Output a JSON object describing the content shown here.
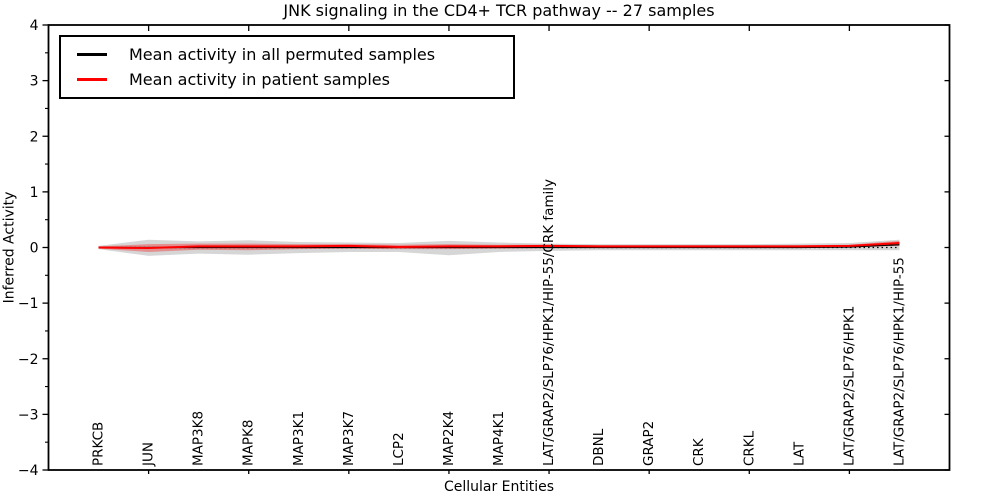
{
  "chart_data": {
    "type": "line",
    "title": "JNK signaling in the CD4+ TCR pathway -- 27 samples",
    "xlabel": "Cellular Entities",
    "ylabel": "Inferred Activity",
    "ylim": [
      -4,
      4
    ],
    "yticks": [
      4,
      3,
      2,
      1,
      0,
      -1,
      -2,
      -3,
      -4
    ],
    "ytick_labels": [
      "4",
      "3",
      "2",
      "1",
      "0",
      "−1",
      "−2",
      "−3",
      "−4"
    ],
    "grid": false,
    "legend": {
      "position": "upper left",
      "entries": [
        {
          "label": "Mean activity in all permuted samples",
          "color": "#000000"
        },
        {
          "label": "Mean activity in patient samples",
          "color": "#ff0000"
        }
      ]
    },
    "categories": [
      "PRKCB",
      "JUN",
      "MAP3K8",
      "MAPK8",
      "MAP3K1",
      "MAP3K7",
      "LCP2",
      "MAP2K4",
      "MAP4K1",
      "LAT/GRAP2/SLP76/HPK1/HIP-55/CRK family",
      "DBNL",
      "GRAP2",
      "CRK",
      "CRKL",
      "LAT",
      "LAT/GRAP2/SLP76/HPK1",
      "LAT/GRAP2/SLP76/HPK1/HIP-55"
    ],
    "series": [
      {
        "name": "Mean activity in all permuted samples",
        "color": "#000000",
        "style": "solid",
        "values": [
          0.0,
          0.0,
          0.0,
          0.0,
          0.0,
          0.0,
          0.0,
          0.0,
          0.0,
          0.0,
          0.0,
          0.0,
          0.0,
          0.0,
          0.0,
          0.01,
          0.05
        ],
        "band_upper": [
          0.03,
          0.14,
          0.11,
          0.13,
          0.1,
          0.09,
          0.08,
          0.12,
          0.09,
          0.07,
          0.06,
          0.06,
          0.06,
          0.06,
          0.07,
          0.08,
          0.14
        ],
        "band_lower": [
          -0.03,
          -0.15,
          -0.11,
          -0.13,
          -0.1,
          -0.08,
          -0.08,
          -0.14,
          -0.08,
          -0.06,
          -0.05,
          -0.05,
          -0.05,
          -0.05,
          -0.05,
          -0.05,
          -0.05
        ],
        "band_color": "rgba(0,0,0,0.16)"
      },
      {
        "name": "Mean activity in patient samples",
        "color": "#ff0000",
        "style": "solid",
        "values": [
          0.0,
          -0.01,
          0.02,
          0.02,
          0.02,
          0.03,
          0.01,
          0.02,
          0.02,
          0.03,
          0.02,
          0.02,
          0.02,
          0.02,
          0.02,
          0.03,
          0.08
        ],
        "band_upper": [
          0.02,
          0.06,
          0.07,
          0.07,
          0.06,
          0.06,
          0.05,
          0.06,
          0.05,
          0.05,
          0.04,
          0.04,
          0.04,
          0.04,
          0.04,
          0.05,
          0.12
        ],
        "band_lower": [
          -0.02,
          -0.08,
          -0.04,
          -0.05,
          -0.03,
          -0.02,
          -0.03,
          -0.03,
          -0.02,
          -0.01,
          -0.01,
          -0.01,
          -0.01,
          -0.01,
          -0.01,
          0.0,
          0.03
        ],
        "band_color": "rgba(255,0,0,0.33)"
      }
    ],
    "reference_line": {
      "y": 0,
      "style": "dotted",
      "color": "#000000"
    }
  }
}
